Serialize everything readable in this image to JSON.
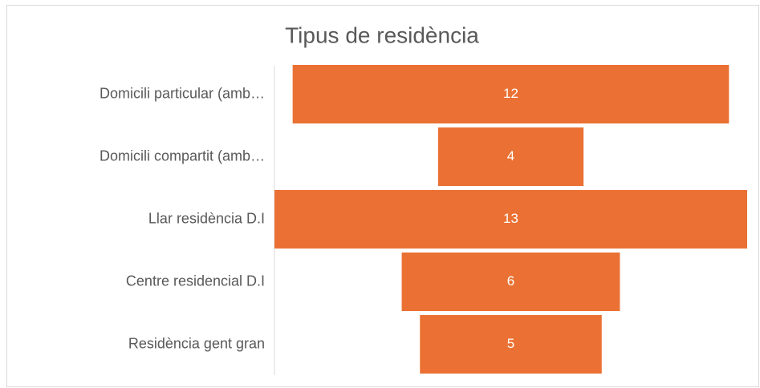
{
  "chart_data": {
    "type": "funnel",
    "title": "Tipus de residència",
    "categories": [
      "Domicili particular (amb…",
      "Domicili compartit (amb…",
      "Llar residència D.I",
      "Centre residencial D.I",
      "Residència gent gran"
    ],
    "values": [
      12,
      4,
      13,
      6,
      5
    ],
    "color": "#ea7133"
  }
}
